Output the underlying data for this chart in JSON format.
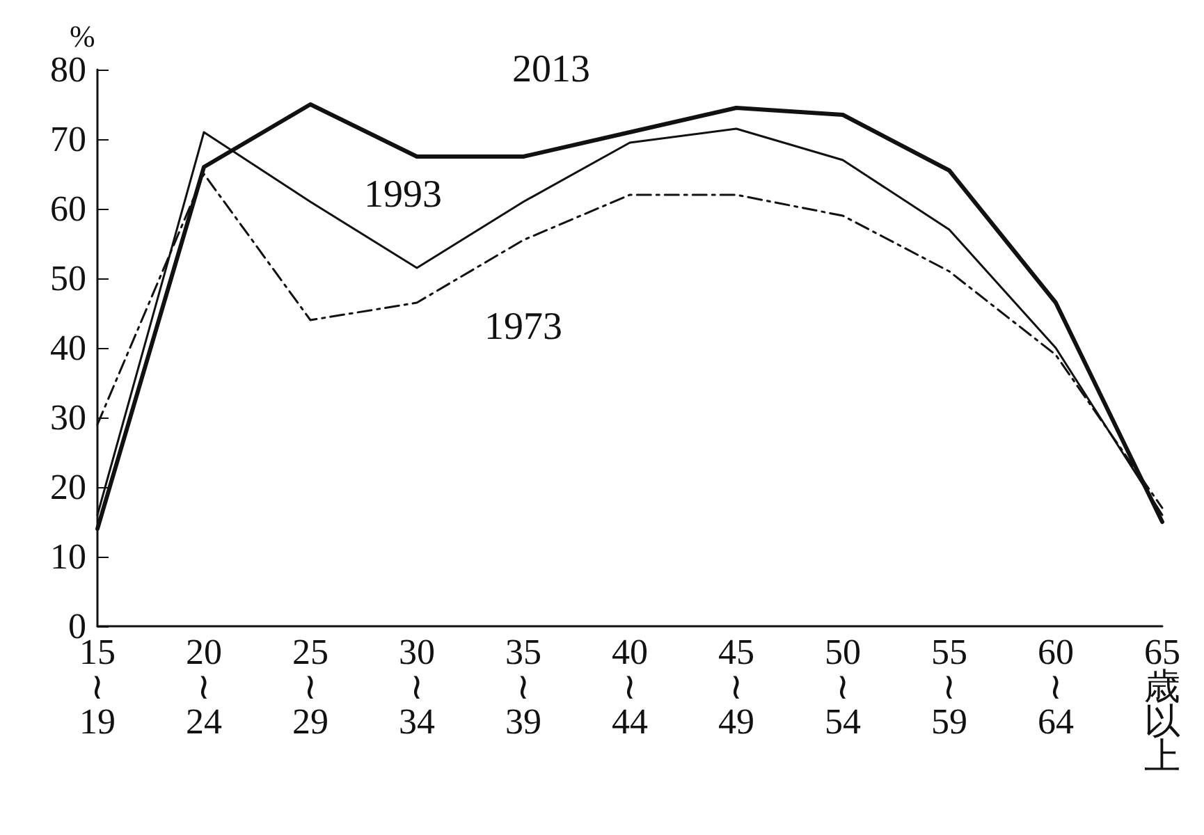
{
  "chart_data": {
    "type": "line",
    "ylabel": "%",
    "categories": [
      "15\n≀\n19",
      "20\n≀\n24",
      "25\n≀\n29",
      "30\n≀\n34",
      "35\n≀\n39",
      "40\n≀\n44",
      "45\n≀\n49",
      "50\n≀\n54",
      "55\n≀\n59",
      "60\n≀\n64",
      "65\n歳以上"
    ],
    "series": [
      {
        "name": "2013",
        "color": "#111111",
        "line_style": "solid",
        "values": [
          14,
          66,
          75,
          67.5,
          67.5,
          71,
          74.5,
          73.5,
          65.5,
          46.5,
          15
        ]
      },
      {
        "name": "1993",
        "color": "#111111",
        "line_style": "solid",
        "values": [
          16,
          71,
          61,
          51.5,
          61,
          69.5,
          71.5,
          67,
          57,
          40,
          16
        ]
      },
      {
        "name": "1973",
        "color": "#111111",
        "line_style": "dashed",
        "values": [
          29,
          65,
          44,
          46.5,
          55.5,
          62,
          62,
          59,
          51,
          39,
          17
        ]
      }
    ],
    "ylim": [
      0,
      80
    ],
    "yticks": [
      0,
      10,
      20,
      30,
      40,
      50,
      60,
      70,
      80
    ],
    "grid": false,
    "legend": false,
    "marker": "none"
  }
}
